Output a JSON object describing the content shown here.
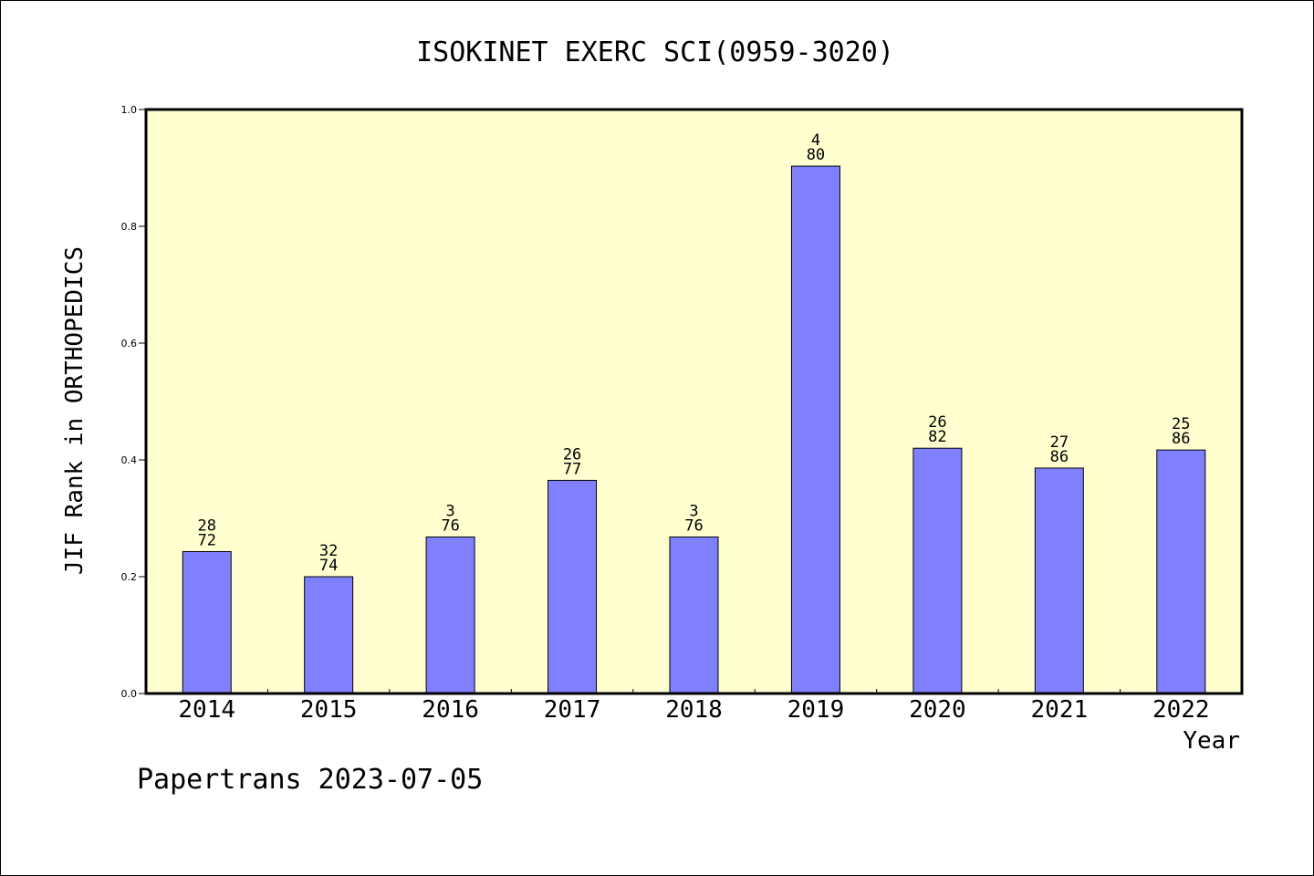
{
  "chart_data": {
    "type": "bar",
    "title": "ISOKINET EXERC SCI(0959-3020)",
    "xlabel": "Year",
    "ylabel": "JIF Rank in ORTHOPEDICS",
    "ylim": [
      0,
      1.0
    ],
    "yticks": [
      "0.0",
      "0.2",
      "0.4",
      "0.6",
      "0.8",
      "1.0"
    ],
    "categories": [
      "2014",
      "2015",
      "2016",
      "2017",
      "2018",
      "2019",
      "2020",
      "2021",
      "2022"
    ],
    "series": [
      {
        "values": [
          0.243,
          0.2,
          0.268,
          0.365,
          0.268,
          0.903,
          0.42,
          0.386,
          0.417
        ],
        "rank": [
          "28",
          "32",
          "3",
          "26",
          "3",
          "4",
          "26",
          "27",
          "25"
        ],
        "total": [
          "72",
          "74",
          "76",
          "77",
          "76",
          "80",
          "82",
          "86",
          "86"
        ]
      }
    ],
    "grid": false,
    "colors": {
      "bar": "#8080ff",
      "plot_background": "#ffffd0"
    }
  },
  "footer": "Papertrans 2023-07-05"
}
